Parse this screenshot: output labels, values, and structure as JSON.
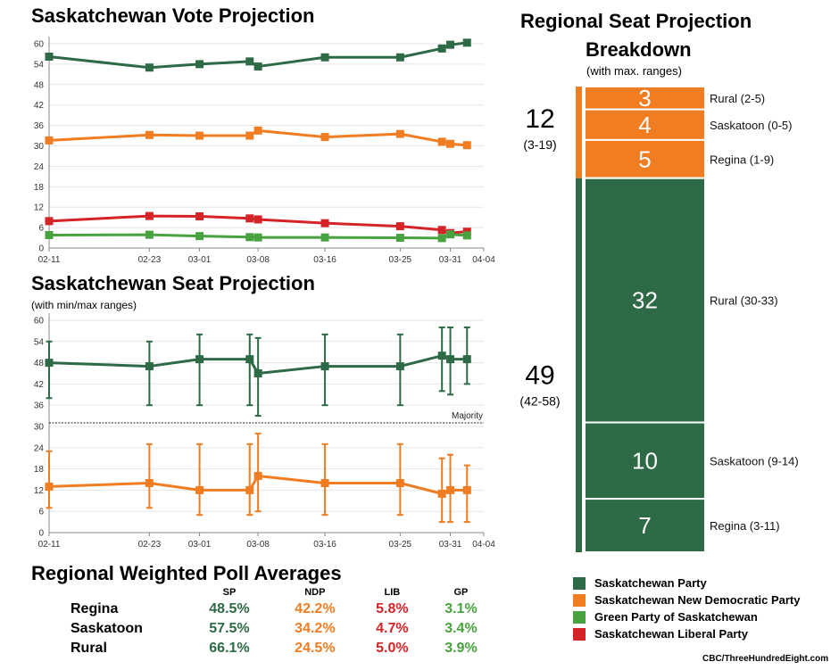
{
  "vote_title": "Saskatchewan Vote Projection",
  "seat_title": "Saskatchewan Seat Projection",
  "seat_subtitle": "(with min/max ranges)",
  "majority_label": "Majority",
  "regional_title_line1": "Regional Seat Projection",
  "regional_title_line2": "Breakdown",
  "regional_subtitle": "(with max. ranges)",
  "poll_title": "Regional Weighted Poll Averages",
  "credit": "CBC/ThreeHundredEight.com",
  "colors": {
    "SP": "#2d6a45",
    "NDP": "#f07d22",
    "LIB": "#d42428",
    "GP": "#48a23f"
  },
  "poll_table": {
    "headers": [
      "SP",
      "NDP",
      "LIB",
      "GP"
    ],
    "rows": [
      {
        "region": "Regina",
        "values": [
          "48.5%",
          "42.2%",
          "5.8%",
          "3.1%"
        ]
      },
      {
        "region": "Saskatoon",
        "values": [
          "57.5%",
          "34.2%",
          "4.7%",
          "3.4%"
        ]
      },
      {
        "region": "Rural",
        "values": [
          "66.1%",
          "24.5%",
          "5.0%",
          "3.9%"
        ]
      }
    ]
  },
  "legend": [
    {
      "label": "Saskatchewan Party",
      "color": "#2d6a45"
    },
    {
      "label": "Saskatchewan New Democratic Party",
      "color": "#f07d22"
    },
    {
      "label": "Green Party of Saskatchewan",
      "color": "#48a23f"
    },
    {
      "label": "Saskatchewan Liberal Party",
      "color": "#d42428"
    }
  ],
  "chart_data": [
    {
      "type": "line",
      "title": "Saskatchewan Vote Projection",
      "x_ticks": [
        "02-11",
        "02-23",
        "03-01",
        "03-08",
        "03-16",
        "03-25",
        "03-31",
        "04-04"
      ],
      "x": [
        "02-11",
        "02-23",
        "03-01",
        "03-07",
        "03-08",
        "03-16",
        "03-25",
        "03-30",
        "03-31",
        "04-02"
      ],
      "ylim": [
        0,
        60
      ],
      "yticks": [
        0,
        6,
        12,
        18,
        24,
        30,
        36,
        42,
        48,
        54,
        60
      ],
      "grid": true,
      "series": [
        {
          "party": "SP",
          "values": [
            56.2,
            53.0,
            54.0,
            54.8,
            53.3,
            56.0,
            56.0,
            58.6,
            59.7,
            60.3
          ]
        },
        {
          "party": "NDP",
          "values": [
            31.6,
            33.2,
            33.0,
            33.0,
            34.5,
            32.6,
            33.5,
            31.2,
            30.6,
            30.2
          ]
        },
        {
          "party": "LIB",
          "values": [
            7.9,
            9.4,
            9.3,
            8.7,
            8.4,
            7.3,
            6.4,
            5.3,
            4.4,
            4.8
          ]
        },
        {
          "party": "GP",
          "values": [
            3.8,
            3.9,
            3.5,
            3.2,
            3.1,
            3.1,
            3.0,
            2.9,
            4.0,
            3.7
          ]
        }
      ]
    },
    {
      "type": "line",
      "title": "Saskatchewan Seat Projection",
      "subtitle": "(with min/max ranges)",
      "x_ticks": [
        "02-11",
        "02-23",
        "03-01",
        "03-08",
        "03-16",
        "03-25",
        "03-31",
        "04-04"
      ],
      "x": [
        "02-11",
        "02-23",
        "03-01",
        "03-07",
        "03-08",
        "03-16",
        "03-25",
        "03-30",
        "03-31",
        "04-02"
      ],
      "ylim": [
        0,
        60
      ],
      "yticks": [
        0,
        6,
        12,
        18,
        24,
        30,
        36,
        42,
        48,
        54,
        60
      ],
      "grid": true,
      "majority": 31,
      "series": [
        {
          "party": "SP",
          "values": [
            48,
            47,
            49,
            49,
            45,
            47,
            47,
            50,
            49,
            49
          ],
          "min": [
            38,
            36,
            36,
            36,
            33,
            36,
            36,
            40,
            39,
            42
          ],
          "max": [
            54,
            54,
            56,
            56,
            55,
            56,
            56,
            58,
            58,
            58
          ]
        },
        {
          "party": "NDP",
          "values": [
            13,
            14,
            12,
            12,
            16,
            14,
            14,
            11,
            12,
            12
          ],
          "min": [
            7,
            7,
            5,
            5,
            6,
            5,
            5,
            3,
            3,
            3
          ],
          "max": [
            23,
            25,
            25,
            25,
            28,
            25,
            25,
            21,
            22,
            19
          ]
        }
      ]
    },
    {
      "type": "bar",
      "title": "Regional Seat Projection Breakdown",
      "subtitle": "(with max. ranges)",
      "totals": [
        {
          "party": "NDP",
          "seats": "12",
          "range": "(3-19)"
        },
        {
          "party": "SP",
          "seats": "49",
          "range": "(42-58)"
        }
      ],
      "segments": [
        {
          "party": "NDP",
          "region": "Rural",
          "seats": 3,
          "label": "Rural (2-5)"
        },
        {
          "party": "NDP",
          "region": "Saskatoon",
          "seats": 4,
          "label": "Saskatoon (0-5)"
        },
        {
          "party": "NDP",
          "region": "Regina",
          "seats": 5,
          "label": "Regina (1-9)"
        },
        {
          "party": "SP",
          "region": "Rural",
          "seats": 32,
          "label": "Rural (30-33)"
        },
        {
          "party": "SP",
          "region": "Saskatoon",
          "seats": 10,
          "label": "Saskatoon (9-14)"
        },
        {
          "party": "SP",
          "region": "Regina",
          "seats": 7,
          "label": "Regina (3-11)"
        }
      ]
    }
  ]
}
